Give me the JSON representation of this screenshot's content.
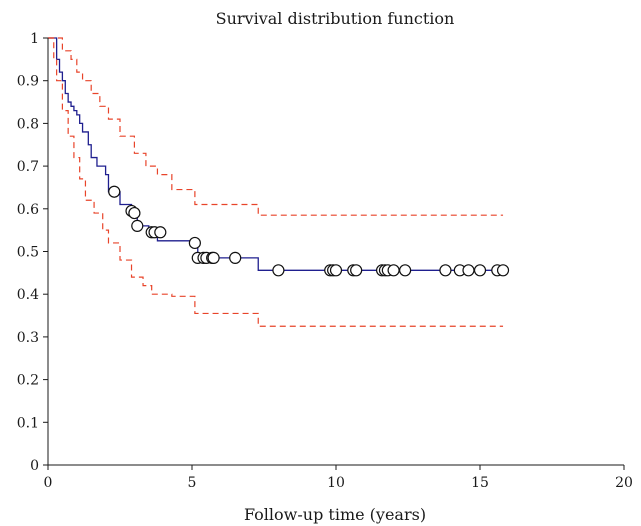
{
  "chart_data": {
    "type": "line",
    "title": "Survival distribution function",
    "xlabel": "Follow-up time (years)",
    "ylabel": "",
    "xlim": [
      0,
      20
    ],
    "ylim": [
      0,
      1
    ],
    "x_ticks": [
      0,
      5,
      10,
      15,
      20
    ],
    "y_ticks": [
      0,
      0.1,
      0.2,
      0.3,
      0.4,
      0.5,
      0.6,
      0.7,
      0.8,
      0.9,
      1
    ],
    "grid": false,
    "legend": "none",
    "colors": {
      "survival": "#1f1f8f",
      "confidence_band": "#e8442a",
      "axis": "#1a1a1a",
      "censor_marker_fill": "#ffffff"
    },
    "series": [
      {
        "style": "step",
        "color": "#1f1f8f",
        "x": [
          0,
          0.3,
          0.4,
          0.5,
          0.6,
          0.7,
          0.8,
          0.9,
          1.0,
          1.1,
          1.2,
          1.4,
          1.5,
          1.7,
          2.0,
          2.1,
          2.5,
          2.9,
          3.1,
          3.5,
          3.8,
          5.1,
          5.2,
          7.3,
          15.8
        ],
        "y": [
          1.0,
          0.95,
          0.92,
          0.9,
          0.87,
          0.85,
          0.84,
          0.83,
          0.82,
          0.8,
          0.78,
          0.75,
          0.72,
          0.7,
          0.68,
          0.64,
          0.61,
          0.59,
          0.56,
          0.545,
          0.525,
          0.52,
          0.485,
          0.456,
          0.456
        ]
      },
      {
        "style": "step-dashed",
        "color": "#e8442a",
        "x": [
          0,
          0.5,
          0.8,
          1.0,
          1.2,
          1.5,
          1.8,
          2.1,
          2.5,
          3.0,
          3.4,
          3.8,
          4.3,
          5.1,
          7.3,
          15.8
        ],
        "y": [
          1.0,
          0.97,
          0.95,
          0.92,
          0.9,
          0.87,
          0.84,
          0.81,
          0.77,
          0.73,
          0.7,
          0.68,
          0.645,
          0.61,
          0.585,
          0.585
        ]
      },
      {
        "style": "step-dashed",
        "color": "#e8442a",
        "x": [
          0,
          0.2,
          0.3,
          0.5,
          0.7,
          0.9,
          1.1,
          1.3,
          1.6,
          1.9,
          2.1,
          2.5,
          2.9,
          3.3,
          3.6,
          4.3,
          5.1,
          7.3,
          15.8
        ],
        "y": [
          1.0,
          0.95,
          0.9,
          0.83,
          0.77,
          0.72,
          0.67,
          0.62,
          0.59,
          0.55,
          0.52,
          0.48,
          0.44,
          0.42,
          0.4,
          0.395,
          0.355,
          0.325,
          0.325
        ]
      },
      {
        "style": "censor-markers",
        "x": [
          2.3,
          2.9,
          3.0,
          3.1,
          3.6,
          3.7,
          3.9,
          5.1,
          5.2,
          5.4,
          5.5,
          5.7,
          5.75,
          6.5,
          8.0,
          9.8,
          9.9,
          10.0,
          10.6,
          10.7,
          11.6,
          11.7,
          11.8,
          12.0,
          12.4,
          13.8,
          14.3,
          14.6,
          15.0,
          15.6,
          15.8
        ],
        "y": [
          0.64,
          0.595,
          0.59,
          0.56,
          0.545,
          0.545,
          0.545,
          0.52,
          0.485,
          0.485,
          0.485,
          0.485,
          0.485,
          0.485,
          0.456,
          0.456,
          0.456,
          0.456,
          0.456,
          0.456,
          0.456,
          0.456,
          0.456,
          0.456,
          0.456,
          0.456,
          0.456,
          0.456,
          0.456,
          0.456,
          0.456
        ]
      }
    ]
  }
}
